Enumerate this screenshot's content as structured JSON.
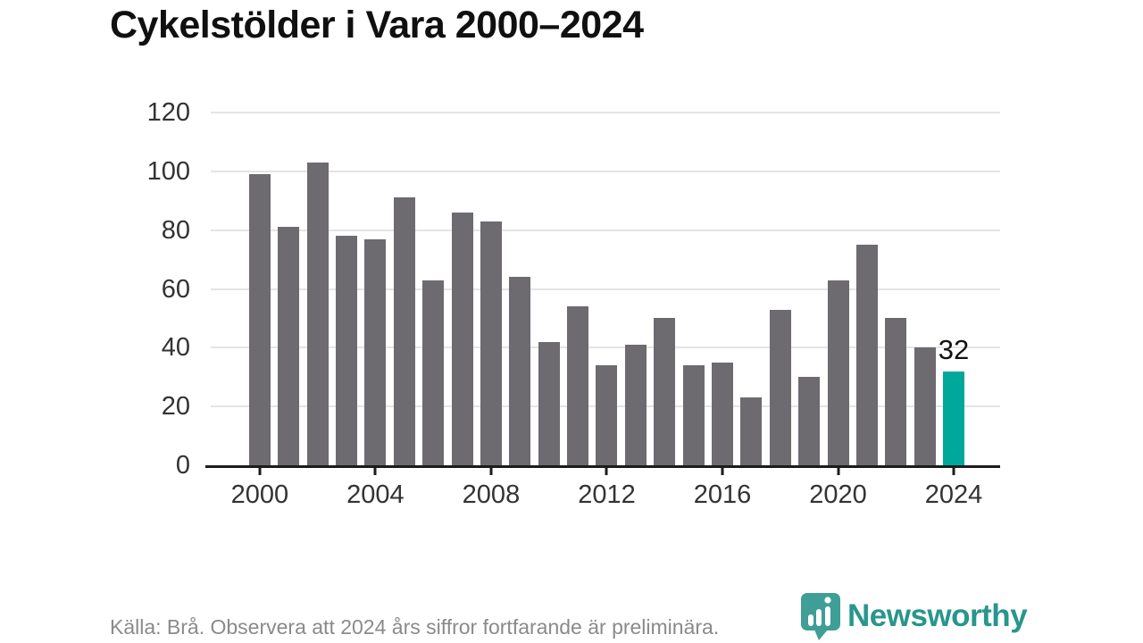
{
  "title": "Cykelstölder i Vara 2000–2024",
  "source_note": "Källa: Brå. Observera att 2024 års siffror fortfarande är preliminära.",
  "annotation": {
    "label": "32"
  },
  "branding": {
    "name": "Newsworthy",
    "logo_icon": "newsworthy-bar-chart-bubble-icon"
  },
  "colors": {
    "bar": "#6d6a70",
    "highlight": "#00a89c",
    "gridline": "#e4e4e4",
    "axis": "#1c1c1c",
    "tick_label": "#333333",
    "title_text": "#101010",
    "source_text": "#8a8a8a",
    "brand_teal": "#3f9e96"
  },
  "chart_data": {
    "type": "bar",
    "title": "Cykelstölder i Vara 2000–2024",
    "x": [
      2000,
      2001,
      2002,
      2003,
      2004,
      2005,
      2006,
      2007,
      2008,
      2009,
      2010,
      2011,
      2012,
      2013,
      2014,
      2015,
      2016,
      2017,
      2018,
      2019,
      2020,
      2021,
      2022,
      2023,
      2024
    ],
    "values": [
      99,
      81,
      103,
      78,
      77,
      91,
      63,
      86,
      83,
      64,
      42,
      54,
      34,
      41,
      50,
      34,
      35,
      23,
      53,
      30,
      63,
      75,
      50,
      40,
      32
    ],
    "highlight_index": 24,
    "highlight_value_label": "32",
    "x_tick_labels": [
      "2000",
      "2004",
      "2008",
      "2012",
      "2016",
      "2020",
      "2024"
    ],
    "y_ticks": [
      0,
      20,
      40,
      60,
      80,
      100,
      120
    ],
    "ylim": [
      0,
      120
    ],
    "grid": "horizontal",
    "legend": "none",
    "xlabel": "",
    "ylabel": ""
  }
}
